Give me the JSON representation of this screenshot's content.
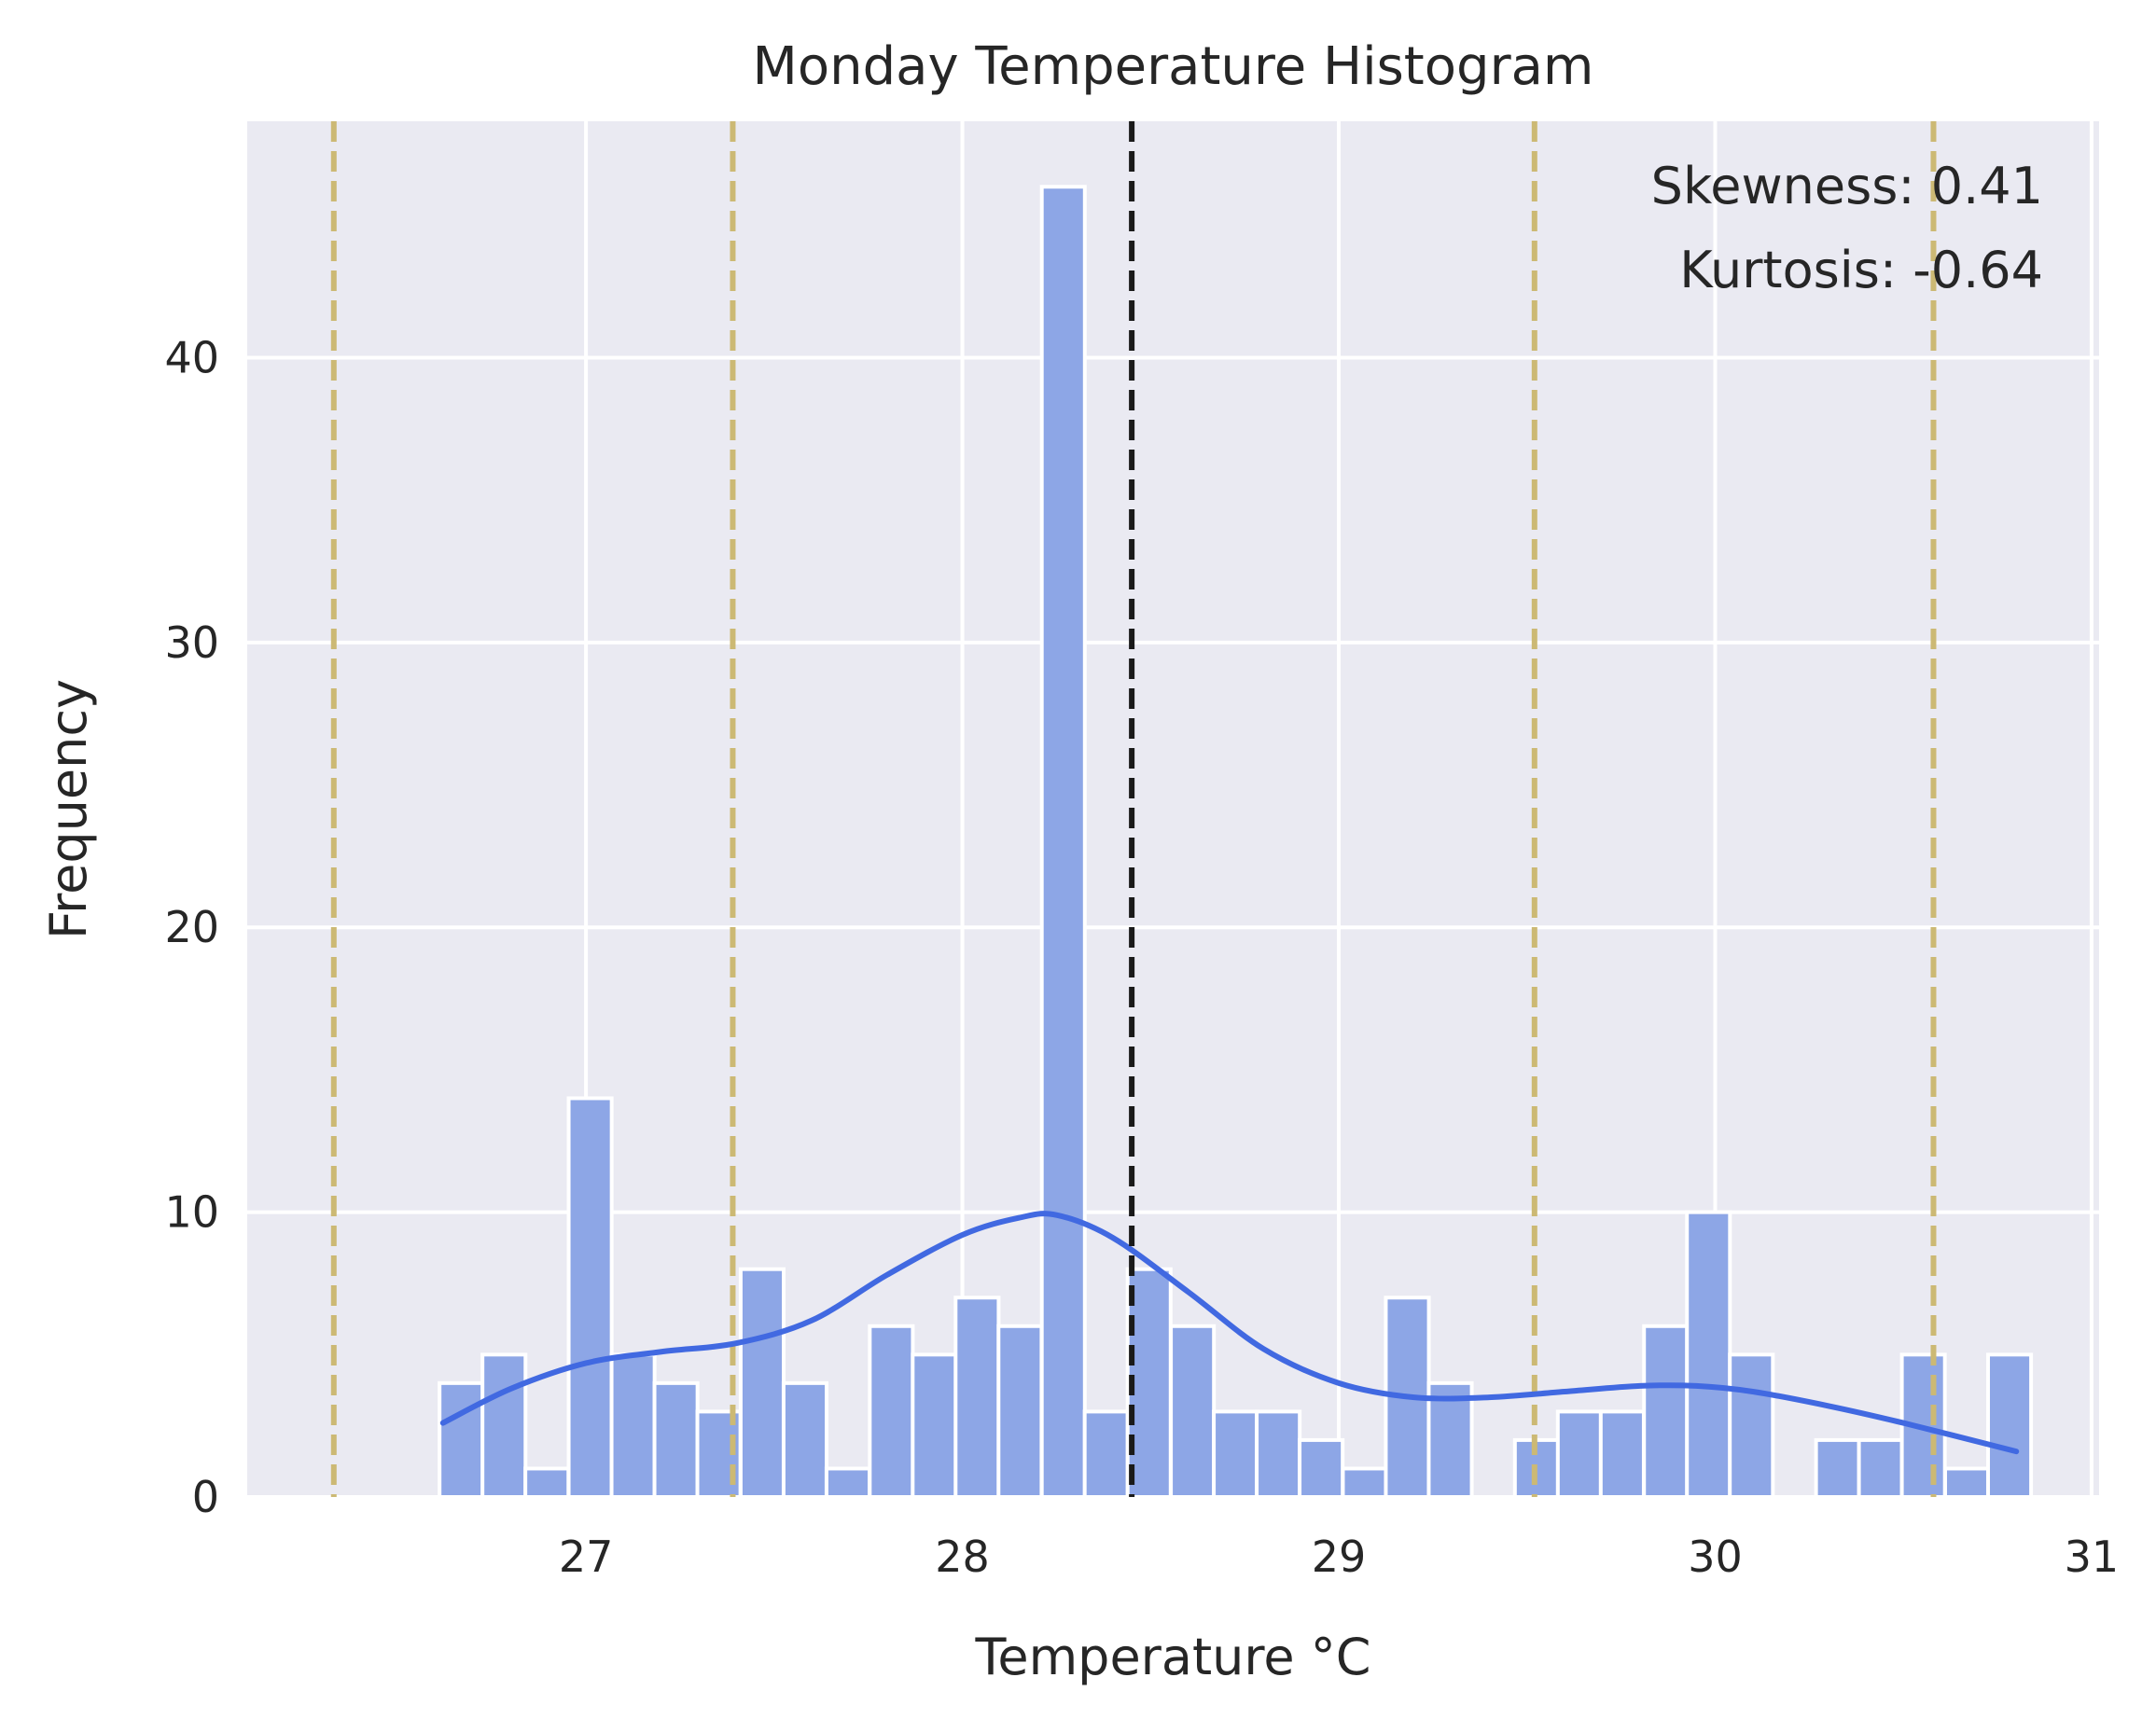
{
  "chart_data": {
    "type": "bar",
    "title": "Monday Temperature Histogram",
    "xlabel": "Temperature °C",
    "ylabel": "Frequency",
    "xlim": [
      26.1,
      31.02
    ],
    "ylim": [
      0,
      48.3
    ],
    "xticks": [
      27,
      28,
      29,
      30,
      31
    ],
    "yticks": [
      0,
      10,
      20,
      30,
      40
    ],
    "grid": true,
    "bin_width": 0.1143,
    "bins": [
      {
        "x0": 26.611,
        "count": 4
      },
      {
        "x0": 26.725,
        "count": 5
      },
      {
        "x0": 26.839,
        "count": 1
      },
      {
        "x0": 26.954,
        "count": 14
      },
      {
        "x0": 27.068,
        "count": 5
      },
      {
        "x0": 27.182,
        "count": 4
      },
      {
        "x0": 27.296,
        "count": 3
      },
      {
        "x0": 27.411,
        "count": 8
      },
      {
        "x0": 27.525,
        "count": 4
      },
      {
        "x0": 27.639,
        "count": 1
      },
      {
        "x0": 27.754,
        "count": 6
      },
      {
        "x0": 27.868,
        "count": 5
      },
      {
        "x0": 27.982,
        "count": 7
      },
      {
        "x0": 28.096,
        "count": 6
      },
      {
        "x0": 28.211,
        "count": 46
      },
      {
        "x0": 28.325,
        "count": 3
      },
      {
        "x0": 28.439,
        "count": 8
      },
      {
        "x0": 28.554,
        "count": 6
      },
      {
        "x0": 28.668,
        "count": 3
      },
      {
        "x0": 28.782,
        "count": 3
      },
      {
        "x0": 28.896,
        "count": 2
      },
      {
        "x0": 29.011,
        "count": 1
      },
      {
        "x0": 29.125,
        "count": 7
      },
      {
        "x0": 29.239,
        "count": 4
      },
      {
        "x0": 29.354,
        "count": 0
      },
      {
        "x0": 29.468,
        "count": 2
      },
      {
        "x0": 29.582,
        "count": 3
      },
      {
        "x0": 29.696,
        "count": 3
      },
      {
        "x0": 29.811,
        "count": 6
      },
      {
        "x0": 29.925,
        "count": 10
      },
      {
        "x0": 30.039,
        "count": 5
      },
      {
        "x0": 30.154,
        "count": 0
      },
      {
        "x0": 30.268,
        "count": 2
      },
      {
        "x0": 30.382,
        "count": 2
      },
      {
        "x0": 30.496,
        "count": 5
      },
      {
        "x0": 30.611,
        "count": 1
      },
      {
        "x0": 30.725,
        "count": 5
      }
    ],
    "kde": {
      "x": [
        26.62,
        26.8,
        27.0,
        27.2,
        27.4,
        27.6,
        27.8,
        28.0,
        28.15,
        28.25,
        28.4,
        28.6,
        28.8,
        29.0,
        29.2,
        29.4,
        29.6,
        29.8,
        29.95,
        30.1,
        30.3,
        30.5,
        30.8
      ],
      "y": [
        2.6,
        3.8,
        4.7,
        5.1,
        5.4,
        6.2,
        7.8,
        9.2,
        9.8,
        9.9,
        9.1,
        7.2,
        5.2,
        4.0,
        3.5,
        3.5,
        3.7,
        3.9,
        3.9,
        3.7,
        3.2,
        2.6,
        1.6
      ]
    },
    "mean_line": 28.45,
    "reference_lines": [
      26.33,
      27.39,
      29.52,
      30.58
    ],
    "annotations": {
      "skewness": "Skewness: 0.41",
      "kurtosis": "Kurtosis: -0.64"
    },
    "colors": {
      "bar": "#8da6e6",
      "kde": "#4169e1",
      "mean_line": "#1a1a1a",
      "reference_line": "#ccb974",
      "plot_bg": "#eaeaf2",
      "grid": "#ffffff"
    }
  }
}
